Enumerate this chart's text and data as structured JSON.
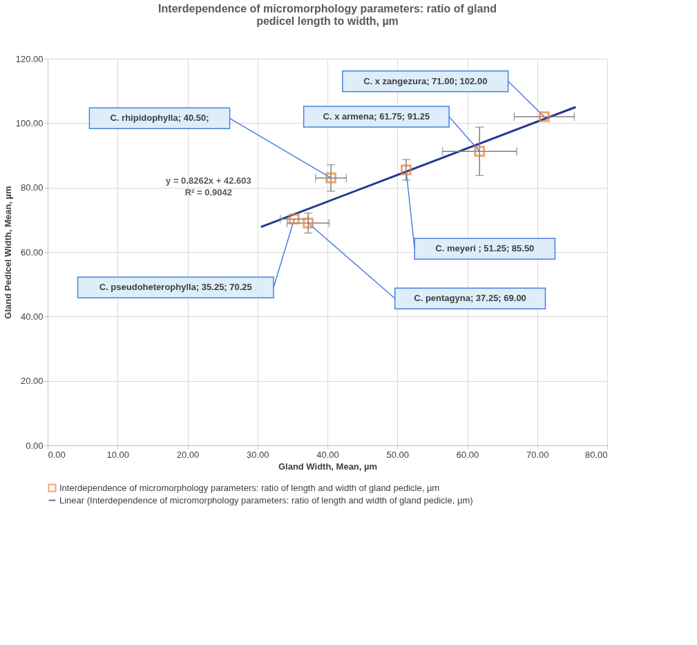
{
  "chart_data": {
    "type": "scatter",
    "title": "Interdependence of micromorphology parameters: ratio of gland pedicel length to width, µm",
    "xlabel": "Gland  Width, Mean, µm",
    "ylabel": "Gland Pedicel Width, Mean, µm",
    "xlim": [
      0,
      80
    ],
    "xticks": [
      {
        "value": 0,
        "label": "0.00"
      },
      {
        "value": 10,
        "label": "10.00"
      },
      {
        "value": 20,
        "label": "20.00"
      },
      {
        "value": 30,
        "label": "30.00"
      },
      {
        "value": 40,
        "label": "40.00"
      },
      {
        "value": 50,
        "label": "50.00"
      },
      {
        "value": 60,
        "label": "60.00"
      },
      {
        "value": 70,
        "label": "70.00"
      },
      {
        "value": 80,
        "label": "80.00"
      }
    ],
    "ylim": [
      0,
      120
    ],
    "yticks": [
      {
        "value": 0,
        "label": "0.00"
      },
      {
        "value": 20,
        "label": "20.00"
      },
      {
        "value": 40,
        "label": "40.00"
      },
      {
        "value": 60,
        "label": "60.00"
      },
      {
        "value": 80,
        "label": "80.00"
      },
      {
        "value": 100,
        "label": "100.00"
      },
      {
        "value": 120,
        "label": "120.00"
      }
    ],
    "grid": true,
    "legend": "bottom",
    "series": [
      {
        "name": "Interdependence of micromorphology parameters: ratio of length and width of gland pedicle, µm",
        "color": "#ed7d31",
        "marker": "square",
        "x": [
          35.25,
          37.25,
          40.5,
          51.25,
          61.75,
          71.0
        ],
        "values": [
          70.25,
          69.0,
          83.0,
          85.5,
          91.25,
          102.0
        ],
        "errors": [
          null,
          3.1,
          4.1,
          3.2,
          7.5,
          null
        ],
        "xerrors": [
          2.0,
          3.0,
          2.2,
          null,
          5.3,
          4.3
        ]
      },
      {
        "name": "Linear (Interdependence of micromorphology parameters: ratio of length and width of gland pedicle, µm)",
        "type": "line",
        "color": "#1f3a93",
        "marker": "none",
        "x": [
          30.5,
          75.5
        ],
        "values": [
          67.8,
          105.0
        ]
      }
    ],
    "annotations": [
      "C. pseudoheterophylla; 35.25; 70.25",
      "C. pentagyna; 37.25; 69.00",
      "C. rhipidophylla; 40.50;",
      "C. meyeri ; 51.25; 85.50",
      "C. x armena; 61.75; 91.25",
      "C. x zangezura; 71.00; 102.00",
      "y = 0.8262x + 42.603",
      "R² = 0.9042"
    ]
  }
}
